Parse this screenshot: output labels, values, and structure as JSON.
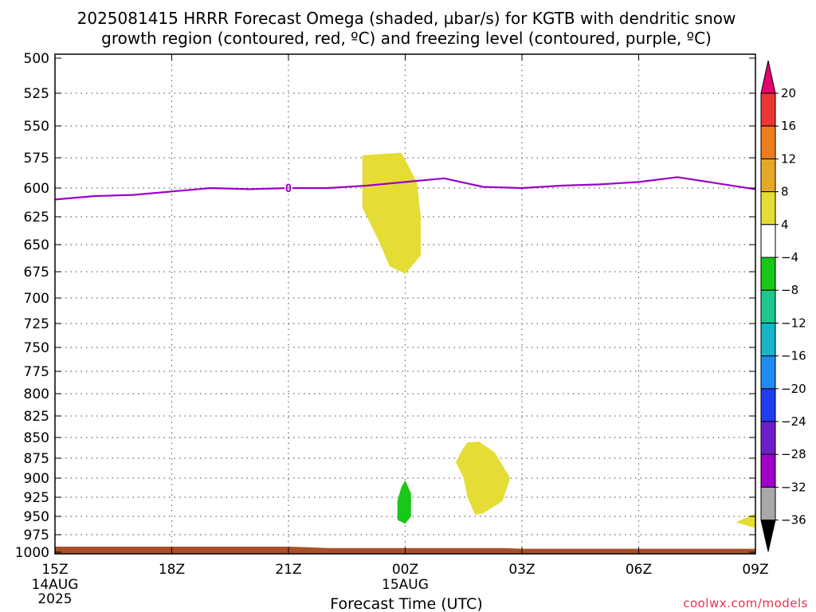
{
  "title_line1": "2025081415 HRRR Forecast Omega (shaded, µbar/s) for KGTB with dendritic snow",
  "title_line2": "growth region (contoured, red, ºC) and freezing level (contoured, purple, ºC)",
  "credit": "coolwx.com/models",
  "chart_data": {
    "type": "contour",
    "title": "2025081415 HRRR Forecast Omega (shaded, µbar/s) for KGTB with dendritic snow growth region (contoured, red, ºC) and freezing level (contoured, purple, ºC)",
    "xlabel": "Forecast Time (UTC)",
    "ylabel": "",
    "x_unit": "hours from 2025-08-14 15Z",
    "xlim": [
      0,
      18
    ],
    "ylim": [
      1000,
      500
    ],
    "y_ticks": [
      500,
      525,
      550,
      575,
      600,
      625,
      650,
      675,
      700,
      725,
      750,
      775,
      800,
      825,
      850,
      875,
      900,
      925,
      950,
      975,
      1000
    ],
    "x_ticks": [
      {
        "x": 0,
        "line1": "15Z",
        "line2": "14AUG",
        "line3": "2025"
      },
      {
        "x": 3,
        "line1": "18Z",
        "line2": "",
        "line3": ""
      },
      {
        "x": 6,
        "line1": "21Z",
        "line2": "",
        "line3": ""
      },
      {
        "x": 9,
        "line1": "00Z",
        "line2": "15AUG",
        "line3": ""
      },
      {
        "x": 12,
        "line1": "03Z",
        "line2": "",
        "line3": ""
      },
      {
        "x": 15,
        "line1": "06Z",
        "line2": "",
        "line3": ""
      },
      {
        "x": 18,
        "line1": "09Z",
        "line2": "",
        "line3": ""
      }
    ],
    "grid": true,
    "freezing_level": {
      "color": "#9b00c8",
      "label": "0",
      "label_at": [
        6,
        600
      ],
      "points": [
        [
          0,
          610
        ],
        [
          1,
          607
        ],
        [
          2,
          606
        ],
        [
          3,
          603
        ],
        [
          4,
          600
        ],
        [
          5,
          601
        ],
        [
          6,
          600
        ],
        [
          7,
          600
        ],
        [
          8,
          598
        ],
        [
          9,
          595
        ],
        [
          10,
          592
        ],
        [
          11,
          599
        ],
        [
          12,
          600
        ],
        [
          13,
          598
        ],
        [
          14,
          597
        ],
        [
          15,
          595
        ],
        [
          16,
          591
        ],
        [
          17,
          596
        ],
        [
          18,
          601
        ]
      ]
    },
    "omega_regions": [
      {
        "value_class": "4 to 8",
        "color": "#e5dc35",
        "points": [
          [
            7.9,
            573
          ],
          [
            8.9,
            571
          ],
          [
            9.3,
            595
          ],
          [
            9.4,
            625
          ],
          [
            9.4,
            660
          ],
          [
            9.0,
            677
          ],
          [
            8.6,
            670
          ],
          [
            8.3,
            645
          ],
          [
            7.9,
            617
          ]
        ]
      },
      {
        "value_class": "4 to 8",
        "color": "#e5dc35",
        "points": [
          [
            10.6,
            856
          ],
          [
            10.9,
            855
          ],
          [
            11.3,
            868
          ],
          [
            11.7,
            900
          ],
          [
            11.5,
            930
          ],
          [
            11.0,
            946
          ],
          [
            10.8,
            948
          ],
          [
            10.6,
            925
          ],
          [
            10.5,
            900
          ],
          [
            10.3,
            880
          ],
          [
            10.5,
            862
          ]
        ]
      },
      {
        "value_class": "-8 to -4",
        "color": "#18c818",
        "points": [
          [
            9.0,
            903
          ],
          [
            9.15,
            920
          ],
          [
            9.15,
            950
          ],
          [
            9.0,
            960
          ],
          [
            8.8,
            955
          ],
          [
            8.8,
            930
          ],
          [
            8.9,
            912
          ]
        ]
      },
      {
        "value_class": "4 to 8",
        "color": "#e5dc35",
        "points": [
          [
            18,
            946
          ],
          [
            18,
            966
          ],
          [
            17.5,
            958
          ]
        ]
      }
    ],
    "terrain": {
      "color": "#a7502a",
      "points": [
        [
          0,
          992
        ],
        [
          3,
          992
        ],
        [
          6,
          992
        ],
        [
          6.5,
          993
        ],
        [
          7,
          994
        ],
        [
          9,
          994
        ],
        [
          11.5,
          994
        ],
        [
          12,
          995
        ],
        [
          15,
          995
        ],
        [
          18,
          995
        ]
      ]
    },
    "colorbar": {
      "levels": [
        "20",
        "16",
        "12",
        "8",
        "4",
        "-4",
        "-8",
        "-12",
        "-16",
        "-20",
        "-24",
        "-28",
        "-32",
        "-36"
      ],
      "colors": [
        "#e6006e",
        "#ee3535",
        "#ee7d1e",
        "#e6a828",
        "#e5dc35",
        "#ffffff",
        "#18c818",
        "#1ec88c",
        "#18b4c8",
        "#1e8cf0",
        "#1e3cf0",
        "#6e1ec8",
        "#a000c8",
        "#a8a8a8",
        "#000000"
      ]
    }
  }
}
